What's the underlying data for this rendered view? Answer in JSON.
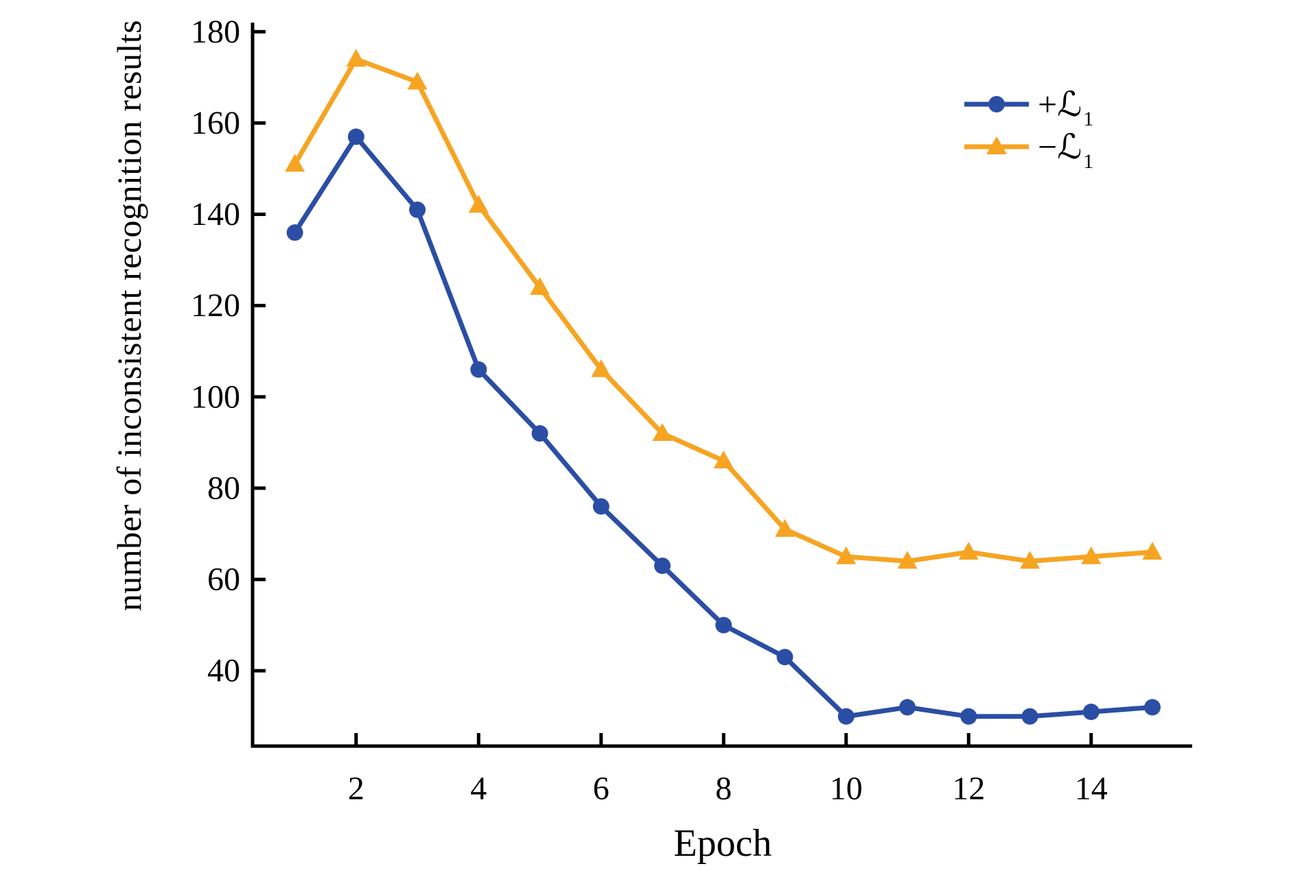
{
  "figure": {
    "background": "#ffffff",
    "text_color": "#000000",
    "spine_color": "#000000"
  },
  "chart_data": {
    "type": "line",
    "title": "",
    "xlabel": "Epoch",
    "ylabel": "number of inconsistent recognition results",
    "x": [
      1,
      2,
      3,
      4,
      5,
      6,
      7,
      8,
      9,
      10,
      11,
      12,
      13,
      14,
      15
    ],
    "x_ticks": [
      2,
      4,
      6,
      8,
      10,
      12,
      14
    ],
    "y_ticks": [
      40,
      60,
      80,
      100,
      120,
      140,
      160,
      180
    ],
    "xlim": [
      0.31,
      15.65
    ],
    "ylim": [
      23.5,
      182
    ],
    "grid": false,
    "legend_position": "upper right",
    "series": [
      {
        "id": "plus-l1",
        "label_sign": "+",
        "label_symbol": "ℒ",
        "label_subscript": "1",
        "color": "#2B4EA5",
        "marker": "circle",
        "values": [
          136,
          157,
          141,
          106,
          92,
          76,
          63,
          50,
          43,
          30,
          32,
          30,
          30,
          31,
          32
        ]
      },
      {
        "id": "minus-l1",
        "label_sign": "−",
        "label_symbol": "ℒ",
        "label_subscript": "1",
        "color": "#F6A422",
        "marker": "triangle",
        "values": [
          151,
          174,
          169,
          142,
          124,
          106,
          92,
          86,
          71,
          65,
          64,
          66,
          64,
          65,
          66
        ]
      }
    ]
  }
}
